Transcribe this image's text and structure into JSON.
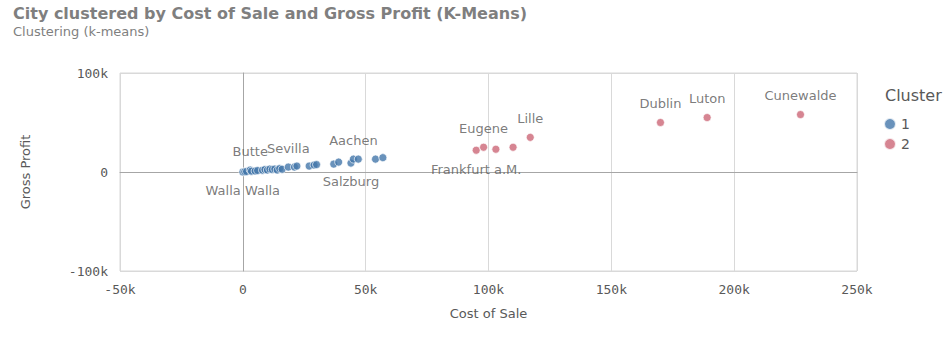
{
  "chart_data": {
    "type": "scatter",
    "title": "City clustered by Cost of Sale and Gross Profit (K-Means)",
    "subtitle": "Clustering (k-means)",
    "x_label": "Cost of Sale",
    "y_label": "Gross Profit",
    "legend_title": "Cluster",
    "legend": "right",
    "grid": true,
    "xlim": [
      -50000,
      250000
    ],
    "xticks": [
      {
        "value": -50000,
        "label": "-50k"
      },
      0,
      {
        "value": 50000,
        "label": "50k"
      },
      {
        "value": 100000,
        "label": "100k"
      },
      {
        "value": 150000,
        "label": "150k"
      },
      {
        "value": 200000,
        "label": "200k"
      },
      {
        "value": 250000,
        "label": "250k"
      }
    ],
    "ylim": [
      -100000,
      100000
    ],
    "yticks": [
      {
        "value": -100000,
        "label": "-100k"
      },
      0,
      {
        "value": 100000,
        "label": "100k"
      }
    ],
    "series": [
      {
        "name": "1",
        "color": "#4477aa",
        "marker": "circle",
        "x": [
          0,
          800,
          1500,
          3000,
          3500,
          5000,
          6000,
          8000,
          9000,
          10000,
          11000,
          12000,
          13000,
          14000,
          15000,
          16000,
          18500,
          21000,
          22000,
          27000,
          29000,
          30000,
          37000,
          39000,
          44000,
          45000,
          47000,
          54000,
          57000
        ],
        "values": [
          0,
          300,
          500,
          2000,
          800,
          1000,
          1500,
          1800,
          2500,
          2000,
          3000,
          2500,
          3000,
          2000,
          3500,
          2800,
          5000,
          5000,
          6000,
          6000,
          7000,
          7500,
          8000,
          10000,
          9000,
          13000,
          13000,
          13000,
          14500
        ],
        "labels": [
          "Walla Walla",
          null,
          null,
          "Butte",
          null,
          null,
          null,
          null,
          null,
          null,
          null,
          null,
          null,
          null,
          null,
          null,
          "Sevilla",
          null,
          null,
          null,
          null,
          null,
          null,
          null,
          "Salzburg",
          "Aachen",
          null,
          null,
          null
        ]
      },
      {
        "name": "2",
        "color": "#cc6677",
        "marker": "circle",
        "x": [
          95000,
          98000,
          103000,
          110000,
          117000,
          170000,
          189000,
          227000
        ],
        "values": [
          22000,
          25000,
          23000,
          25000,
          35000,
          50000,
          55000,
          58000
        ],
        "labels": [
          "Frankfurt a.M.",
          "Eugene",
          null,
          null,
          "Lille",
          "Dublin",
          "Luton",
          "Cunewalde"
        ]
      }
    ]
  }
}
